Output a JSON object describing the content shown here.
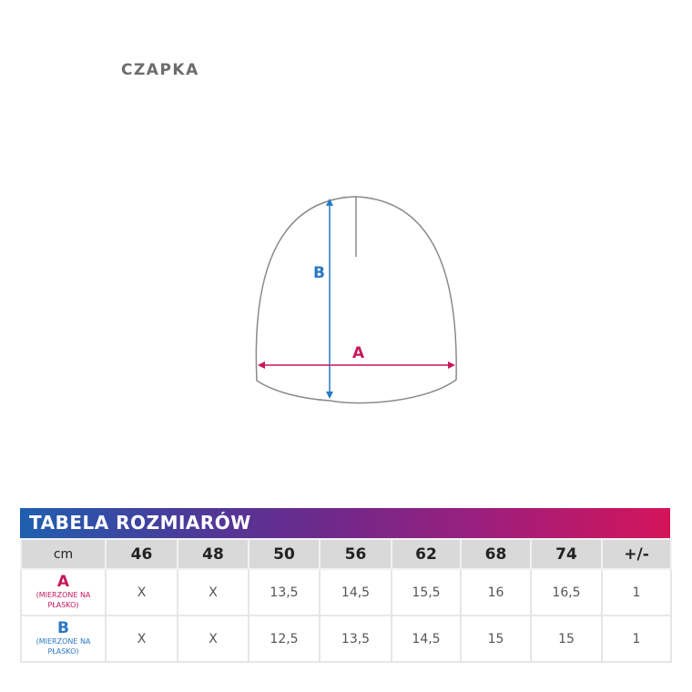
{
  "title": "CZAPKA",
  "diagram": {
    "label_a": "A",
    "label_b": "B",
    "colors": {
      "a": "#c8175d",
      "b": "#2a78c2",
      "outline": "#8a8a8a"
    }
  },
  "table": {
    "heading": "TABELA ROZMIARÓW",
    "header": [
      "cm",
      "46",
      "48",
      "50",
      "56",
      "62",
      "68",
      "74",
      "+/-"
    ],
    "rows": [
      {
        "label": "A",
        "note": "(MIERZONE NA PŁASKO)",
        "values": [
          "X",
          "X",
          "13,5",
          "14,5",
          "15,5",
          "16",
          "16,5",
          "1"
        ]
      },
      {
        "label": "B",
        "note": "(MIERZONE NA PŁASKO)",
        "values": [
          "X",
          "X",
          "12,5",
          "13,5",
          "14,5",
          "15",
          "15",
          "1"
        ]
      }
    ]
  }
}
